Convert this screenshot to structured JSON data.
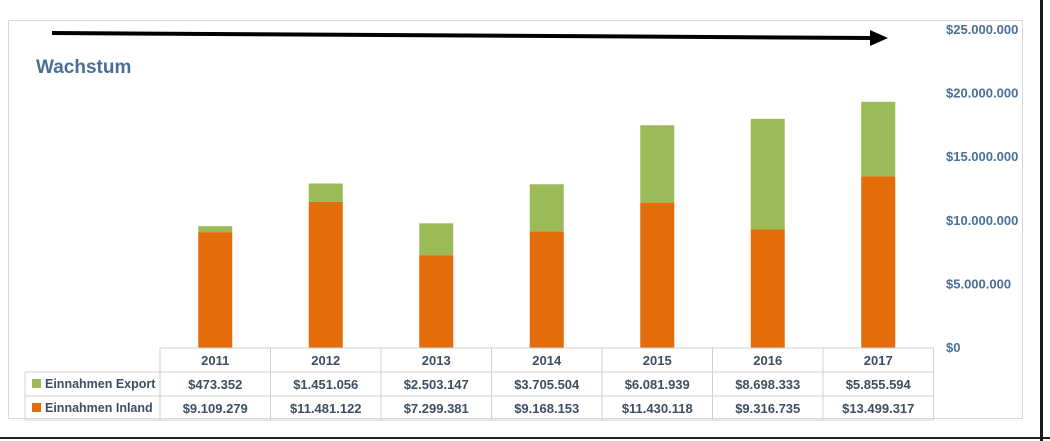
{
  "chart_data": {
    "type": "bar",
    "stacked": true,
    "title": "Wachstum",
    "categories": [
      "2011",
      "2012",
      "2013",
      "2014",
      "2015",
      "2016",
      "2017"
    ],
    "series": [
      {
        "name": "Einnahmen Inland",
        "color": "#e46c0a",
        "values": [
          9109279,
          11481122,
          7299381,
          9168153,
          11430118,
          9316735,
          13499317
        ],
        "labels": [
          "$9.109.279",
          "$11.481.122",
          "$7.299.381",
          "$9.168.153",
          "$11.430.118",
          "$9.316.735",
          "$13.499.317"
        ]
      },
      {
        "name": "Einnahmen Export",
        "color": "#9bbb59",
        "values": [
          473352,
          1451056,
          2503147,
          3705504,
          6081939,
          8698333,
          5855594
        ],
        "labels": [
          "$473.352",
          "$1.451.056",
          "$2.503.147",
          "$3.705.504",
          "$6.081.939",
          "$8.698.333",
          "$5.855.594"
        ]
      }
    ],
    "ylim": [
      0,
      25000000
    ],
    "yticks": [
      0,
      5000000,
      10000000,
      15000000,
      20000000,
      25000000
    ],
    "ytick_labels": [
      "$0",
      "$5.000.000",
      "$10.000.000",
      "$15.000.000",
      "$20.000.000",
      "$25.000.000"
    ],
    "axis_side": "right",
    "data_table": true,
    "annotation": "growth arrow pointing right"
  }
}
